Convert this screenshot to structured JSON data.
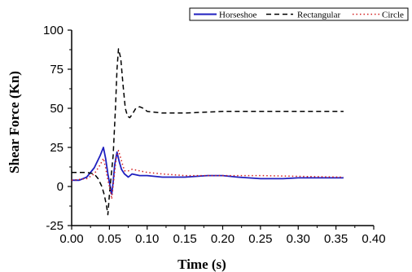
{
  "chart_data": {
    "type": "line",
    "xlabel": "Time (s)",
    "ylabel": "Shear Force (Kn)",
    "xlim": [
      0.0,
      0.4
    ],
    "ylim": [
      -25,
      100
    ],
    "x_ticks": [
      "0.00",
      "0.05",
      "0.10",
      "0.15",
      "0.20",
      "0.25",
      "0.30",
      "0.35",
      "0.40"
    ],
    "y_ticks": [
      "-25",
      "0",
      "25",
      "50",
      "75",
      "100"
    ],
    "grid": false,
    "legend_position": "top-right",
    "series": [
      {
        "name": "Horseshoe",
        "color": "#1f1fbf",
        "style": "solid",
        "points": [
          [
            0.0,
            4
          ],
          [
            0.01,
            4
          ],
          [
            0.02,
            6
          ],
          [
            0.03,
            12
          ],
          [
            0.038,
            20
          ],
          [
            0.042,
            25
          ],
          [
            0.045,
            18
          ],
          [
            0.048,
            8
          ],
          [
            0.051,
            0
          ],
          [
            0.053,
            -5
          ],
          [
            0.055,
            3
          ],
          [
            0.057,
            14
          ],
          [
            0.06,
            22
          ],
          [
            0.063,
            16
          ],
          [
            0.066,
            11
          ],
          [
            0.07,
            8
          ],
          [
            0.075,
            6
          ],
          [
            0.08,
            8
          ],
          [
            0.09,
            7
          ],
          [
            0.1,
            7
          ],
          [
            0.12,
            6
          ],
          [
            0.15,
            6
          ],
          [
            0.18,
            7
          ],
          [
            0.2,
            7
          ],
          [
            0.22,
            6
          ],
          [
            0.25,
            5
          ],
          [
            0.28,
            5
          ],
          [
            0.3,
            5.5
          ],
          [
            0.33,
            5.5
          ],
          [
            0.36,
            5.5
          ]
        ]
      },
      {
        "name": "Rectangular",
        "color": "#000000",
        "style": "dashed",
        "points": [
          [
            0.0,
            9
          ],
          [
            0.02,
            9
          ],
          [
            0.03,
            8
          ],
          [
            0.035,
            5
          ],
          [
            0.04,
            0
          ],
          [
            0.043,
            -5
          ],
          [
            0.046,
            -12
          ],
          [
            0.048,
            -18
          ],
          [
            0.05,
            -5
          ],
          [
            0.052,
            5
          ],
          [
            0.055,
            20
          ],
          [
            0.058,
            50
          ],
          [
            0.06,
            75
          ],
          [
            0.062,
            88
          ],
          [
            0.065,
            82
          ],
          [
            0.068,
            65
          ],
          [
            0.071,
            50
          ],
          [
            0.074,
            45
          ],
          [
            0.077,
            44
          ],
          [
            0.08,
            46
          ],
          [
            0.085,
            50
          ],
          [
            0.09,
            51
          ],
          [
            0.095,
            50
          ],
          [
            0.1,
            48
          ],
          [
            0.12,
            47
          ],
          [
            0.15,
            47
          ],
          [
            0.2,
            48
          ],
          [
            0.25,
            48
          ],
          [
            0.3,
            48
          ],
          [
            0.36,
            48
          ]
        ]
      },
      {
        "name": "Circle",
        "color": "#d42020",
        "style": "dotted",
        "points": [
          [
            0.0,
            4
          ],
          [
            0.02,
            5
          ],
          [
            0.03,
            8
          ],
          [
            0.038,
            14
          ],
          [
            0.042,
            18
          ],
          [
            0.045,
            12
          ],
          [
            0.048,
            4
          ],
          [
            0.051,
            -2
          ],
          [
            0.053,
            -8
          ],
          [
            0.056,
            5
          ],
          [
            0.059,
            18
          ],
          [
            0.062,
            23
          ],
          [
            0.065,
            18
          ],
          [
            0.07,
            10
          ],
          [
            0.075,
            10
          ],
          [
            0.08,
            11
          ],
          [
            0.09,
            10
          ],
          [
            0.1,
            9
          ],
          [
            0.12,
            8
          ],
          [
            0.15,
            7
          ],
          [
            0.18,
            7
          ],
          [
            0.2,
            7
          ],
          [
            0.25,
            7
          ],
          [
            0.3,
            6.5
          ],
          [
            0.36,
            6
          ]
        ]
      }
    ]
  }
}
